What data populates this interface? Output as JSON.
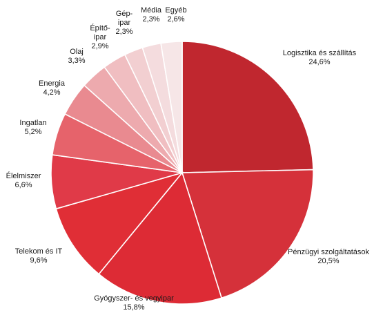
{
  "chart_data": {
    "type": "pie",
    "title": "",
    "series": [
      {
        "name": "",
        "values": [
          24.6,
          20.5,
          15.8,
          9.6,
          6.6,
          5.2,
          4.2,
          3.3,
          2.9,
          2.3,
          2.3,
          2.6
        ]
      }
    ],
    "slices": [
      {
        "label": "Logisztika és szállítás",
        "lines": [
          "Logisztika és szállítás"
        ],
        "value": 24.6,
        "display": "24,6%",
        "color": "#c0272f"
      },
      {
        "label": "Pénzügyi szolgáltatások",
        "lines": [
          "Pénzügyi szolgáltatások"
        ],
        "value": 20.5,
        "display": "20,5%",
        "color": "#d5313a"
      },
      {
        "label": "Gyógyszer- és vegyipar",
        "lines": [
          "Gyógyszer- és vegyipar"
        ],
        "value": 15.8,
        "display": "15,8%",
        "color": "#dd2b35"
      },
      {
        "label": "Telekom és IT",
        "lines": [
          "Telekom és IT"
        ],
        "value": 9.6,
        "display": "9,6%",
        "color": "#e02e36"
      },
      {
        "label": "Élelmiszer",
        "lines": [
          "Élelmiszer"
        ],
        "value": 6.6,
        "display": "6,6%",
        "color": "#e03a48"
      },
      {
        "label": "Ingatlan",
        "lines": [
          "Ingatlan"
        ],
        "value": 5.2,
        "display": "5,2%",
        "color": "#e6636b"
      },
      {
        "label": "Energia",
        "lines": [
          "Energia"
        ],
        "value": 4.2,
        "display": "4,2%",
        "color": "#e98a90"
      },
      {
        "label": "Olaj",
        "lines": [
          "Olaj"
        ],
        "value": 3.3,
        "display": "3,3%",
        "color": "#edaaae"
      },
      {
        "label": "Építőipar",
        "lines": [
          "Építő-",
          "ipar"
        ],
        "value": 2.9,
        "display": "2,9%",
        "color": "#f0bec1"
      },
      {
        "label": "Gépipar",
        "lines": [
          "Gép-",
          "ipar"
        ],
        "value": 2.3,
        "display": "2,3%",
        "color": "#f2cfd1"
      },
      {
        "label": "Média",
        "lines": [
          "Média"
        ],
        "value": 2.3,
        "display": "2,3%",
        "color": "#f4dcde"
      },
      {
        "label": "Egyéb",
        "lines": [
          "Egyéb"
        ],
        "value": 2.6,
        "display": "2,6%",
        "color": "#f6e6e7"
      }
    ]
  }
}
